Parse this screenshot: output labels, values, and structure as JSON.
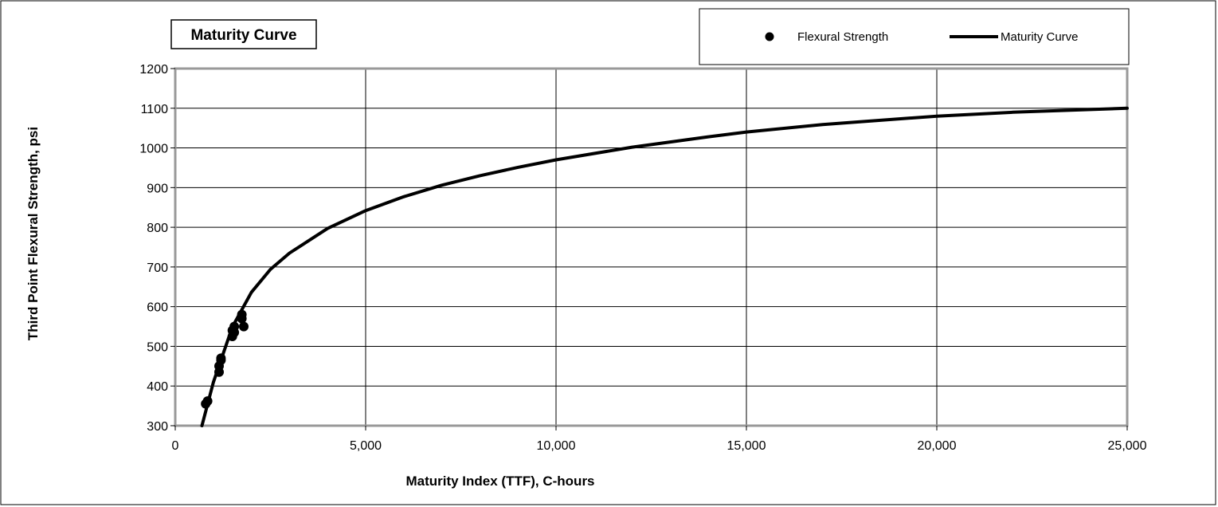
{
  "chart_data": {
    "type": "scatter",
    "title": "Maturity Curve",
    "xlabel": "Maturity Index (TTF), C-hours",
    "ylabel": "Third Point Flexural Strength, psi",
    "xlim": [
      0,
      25000
    ],
    "ylim": [
      300,
      1200
    ],
    "x_ticks": [
      0,
      5000,
      10000,
      15000,
      20000,
      25000
    ],
    "x_tick_labels": [
      "0",
      "5,000",
      "10,000",
      "15,000",
      "20,000",
      "25,000"
    ],
    "y_ticks": [
      300,
      400,
      500,
      600,
      700,
      800,
      900,
      1000,
      1100,
      1200
    ],
    "y_tick_labels": [
      "300",
      "400",
      "500",
      "600",
      "700",
      "800",
      "900",
      "1000",
      "1100",
      "1200"
    ],
    "grid": true,
    "legend_position": "top-right",
    "series": [
      {
        "name": "Flexural Strength",
        "type": "scatter",
        "x": [
          800,
          850,
          1150,
          1150,
          1200,
          1200,
          1500,
          1500,
          1550,
          1550,
          1750,
          1750,
          1800
        ],
        "y": [
          355,
          362,
          435,
          450,
          465,
          470,
          525,
          540,
          535,
          550,
          570,
          580,
          550
        ]
      },
      {
        "name": "Maturity Curve",
        "type": "line",
        "x": [
          700,
          1000,
          1500,
          2000,
          2500,
          3000,
          4000,
          5000,
          6000,
          7000,
          8000,
          9000,
          10000,
          12000,
          14000,
          15000,
          17000,
          20000,
          22000,
          25000
        ],
        "y": [
          300,
          409,
          549,
          636,
          694,
          735,
          797,
          842,
          877,
          906,
          930,
          951,
          970,
          1002,
          1028,
          1040,
          1059,
          1080,
          1090,
          1100
        ]
      }
    ]
  }
}
